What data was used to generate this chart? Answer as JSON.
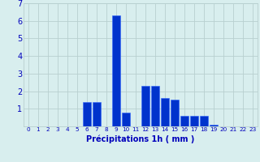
{
  "hours": [
    0,
    1,
    2,
    3,
    4,
    5,
    6,
    7,
    8,
    9,
    10,
    11,
    12,
    13,
    14,
    15,
    16,
    17,
    18,
    19,
    20,
    21,
    22,
    23
  ],
  "values": [
    0,
    0,
    0,
    0,
    0,
    0,
    1.4,
    1.4,
    0,
    6.3,
    0.8,
    0,
    2.3,
    2.3,
    1.6,
    1.5,
    0.6,
    0.6,
    0.6,
    0.1,
    0,
    0,
    0,
    0
  ],
  "bar_color": "#0033cc",
  "bar_edge_color": "#3366ff",
  "background_color": "#d8eeee",
  "grid_color": "#b8d0d0",
  "xlabel": "Précipitations 1h ( mm )",
  "xlabel_color": "#0000bb",
  "tick_color": "#0000bb",
  "ylim": [
    0,
    7
  ],
  "yticks": [
    0,
    1,
    2,
    3,
    4,
    5,
    6,
    7
  ],
  "figsize": [
    3.2,
    2.0
  ],
  "dpi": 100
}
